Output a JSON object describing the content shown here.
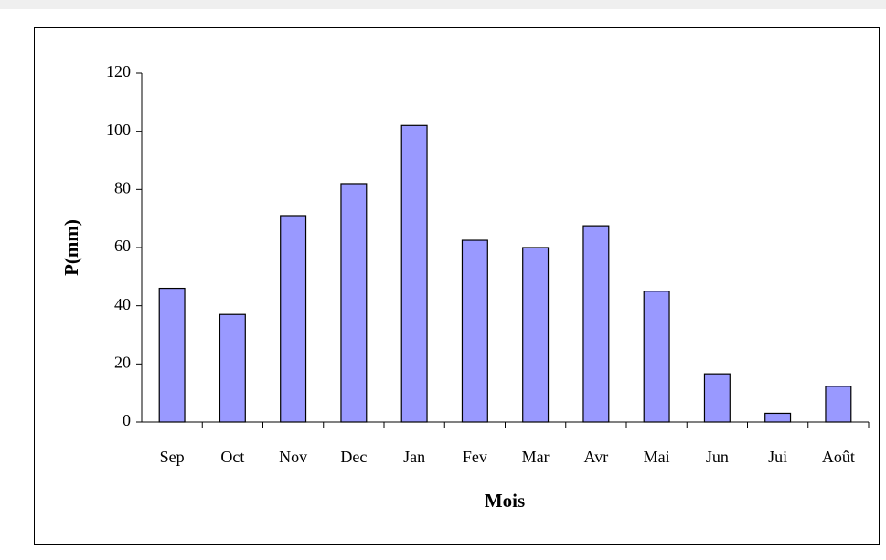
{
  "chart_data": {
    "type": "bar",
    "x_label": "Mois",
    "y_label": "P(mm)",
    "categories": [
      "Sep",
      "Oct",
      "Nov",
      "Dec",
      "Jan",
      "Fev",
      "Mar",
      "Avr",
      "Mai",
      "Jun",
      "Jui",
      "Août"
    ],
    "values": [
      46,
      37,
      71,
      82,
      102,
      62.5,
      60,
      67.5,
      45,
      16.6,
      3,
      12.3
    ],
    "color": "#9999ff",
    "ylim": [
      0,
      120
    ],
    "yticks": [
      0,
      20,
      40,
      60,
      80,
      100,
      120
    ],
    "grid": false
  }
}
